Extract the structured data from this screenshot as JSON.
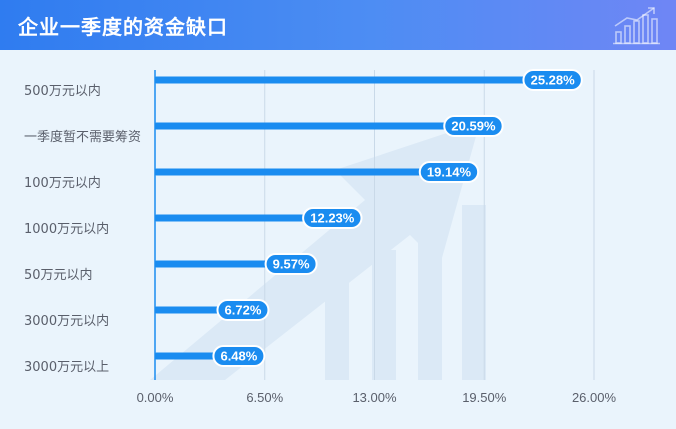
{
  "header": {
    "title": "企业一季度的资金缺口",
    "icon": "bar-chart-growth-icon"
  },
  "colors": {
    "header_start": "#2f7cf0",
    "header_end": "#6f86f5",
    "bar": "#1a8cf0",
    "label_bg": "#1a8cf0",
    "label_text": "#ffffff",
    "axis_text": "#5a5f6b",
    "grid": "#c9d9e8",
    "background": "#eaf4fc"
  },
  "chart_data": {
    "type": "bar",
    "orientation": "horizontal",
    "title": "企业一季度的资金缺口",
    "xlabel": "",
    "ylabel": "",
    "categories": [
      "500万元以内",
      "一季度暂不需要筹资",
      "100万元以内",
      "1000万元以内",
      "50万元以内",
      "3000万元以内",
      "3000万元以上"
    ],
    "values": [
      25.28,
      20.59,
      19.14,
      12.23,
      9.57,
      6.72,
      6.48
    ],
    "value_labels": [
      "25.28%",
      "20.59%",
      "19.14%",
      "12.23%",
      "9.57%",
      "6.72%",
      "6.48%"
    ],
    "xlim": [
      0,
      26
    ],
    "xticks": [
      0,
      6.5,
      13,
      19.5,
      26
    ],
    "xtick_labels": [
      "0.00%",
      "6.50%",
      "13.00%",
      "19.50%",
      "26.00%"
    ],
    "grid": "vertical",
    "legend": "none"
  }
}
